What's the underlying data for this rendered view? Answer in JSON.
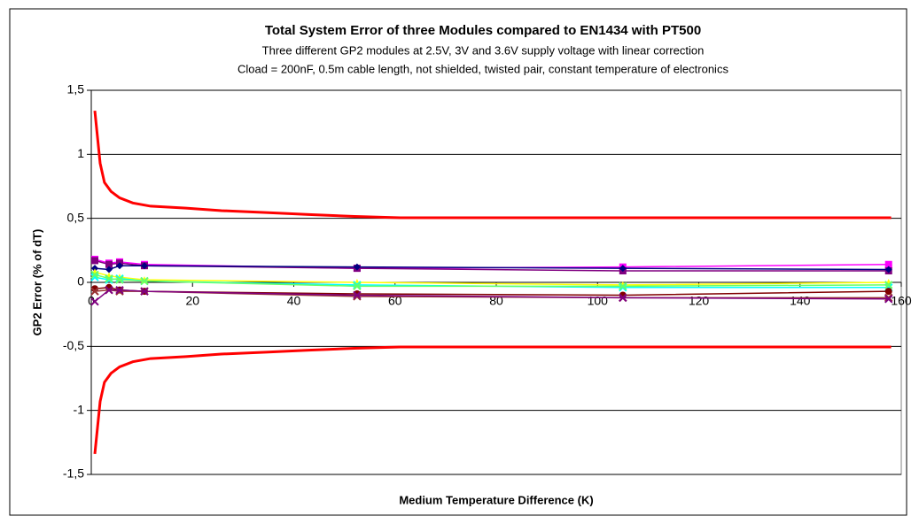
{
  "chart_data": {
    "type": "line",
    "title": "Total System Error of three Modules compared to EN1434 with PT500",
    "subtitle": [
      "Three different GP2 modules at 2.5V, 3V and 3.6V supply voltage with linear correction",
      "Cload = 200nF, 0.5m cable length, not shielded, twisted pair, constant temperature of electronics"
    ],
    "x_label": "Medium Temperature Difference (K)",
    "y_label": "GP2 Error (% of dT)",
    "xlim": [
      0,
      160
    ],
    "xticks": [
      0,
      20,
      40,
      60,
      80,
      100,
      120,
      140,
      160
    ],
    "ylim": [
      -1.5,
      1.5
    ],
    "yticks": [
      {
        "value": -1.5,
        "label": "-1,5"
      },
      -1,
      {
        "value": -0.5,
        "label": "-0,5"
      },
      0,
      {
        "value": 0.5,
        "label": "0,5"
      },
      1,
      {
        "value": 1.5,
        "label": "1,5"
      }
    ],
    "grid": true,
    "series": [
      {
        "color": "#ff0000",
        "x": [
          0.7,
          1.75,
          2.6,
          3.9,
          5.6,
          8.2,
          11.7,
          18.7,
          25.7,
          34.5,
          43,
          52,
          61,
          158
        ],
        "values": [
          1.34,
          0.93,
          0.78,
          0.71,
          0.66,
          0.62,
          0.595,
          0.58,
          0.56,
          0.545,
          0.53,
          0.515,
          0.505,
          0.505
        ]
      },
      {
        "color": "#ff0000",
        "x": [
          0.7,
          1.75,
          2.6,
          3.9,
          5.6,
          8.2,
          11.7,
          18.7,
          25.7,
          34.5,
          43,
          52,
          61,
          158
        ],
        "values": [
          -1.34,
          -0.93,
          -0.78,
          -0.71,
          -0.66,
          -0.62,
          -0.595,
          -0.58,
          -0.56,
          -0.545,
          -0.53,
          -0.515,
          -0.505,
          -0.505
        ]
      },
      {
        "color": "#ff00ff",
        "marker": "square",
        "x": [
          0.7,
          3.5,
          5.6,
          10.5,
          52.5,
          105,
          157.5
        ],
        "values": [
          0.18,
          0.15,
          0.16,
          0.14,
          0.11,
          0.12,
          0.14
        ]
      },
      {
        "color": "#800080",
        "marker": "square",
        "x": [
          0.7,
          3.5,
          5.6,
          10.5,
          52.5,
          105,
          157.5
        ],
        "values": [
          0.17,
          0.14,
          0.15,
          0.13,
          0.11,
          0.09,
          0.09
        ]
      },
      {
        "color": "#000080",
        "marker": "diamond",
        "x": [
          0.7,
          3.5,
          5.6,
          10.5,
          52.5,
          105,
          157.5
        ],
        "values": [
          0.11,
          0.1,
          0.13,
          0.13,
          0.12,
          0.11,
          0.1
        ]
      },
      {
        "color": "#ffff00",
        "marker": "triangle",
        "x": [
          0.7,
          3.5,
          5.6,
          10.5,
          52.5,
          105,
          157.5
        ],
        "values": [
          0.08,
          0.05,
          0.04,
          0.02,
          0.0,
          -0.02,
          0.0
        ]
      },
      {
        "color": "#00ffff",
        "marker": "x",
        "x": [
          0.7,
          3.5,
          5.6,
          10.5,
          52.5,
          105,
          157.5
        ],
        "values": [
          0.04,
          0.02,
          0.03,
          0.01,
          -0.02,
          -0.04,
          -0.04
        ]
      },
      {
        "color": "#66ff66",
        "marker": "x",
        "x": [
          0.7,
          3.5,
          5.6,
          10.5,
          52.5,
          105,
          157.5
        ],
        "values": [
          0.06,
          0.03,
          0.02,
          0.01,
          -0.03,
          -0.03,
          -0.02
        ]
      },
      {
        "color": "#800000",
        "marker": "circle",
        "x": [
          0.7,
          3.5,
          5.6,
          10.5,
          52.5,
          105,
          157.5
        ],
        "values": [
          -0.05,
          -0.04,
          -0.06,
          -0.07,
          -0.09,
          -0.1,
          -0.07
        ]
      },
      {
        "color": "#993333",
        "marker": "x",
        "x": [
          0.7,
          3.5,
          5.6,
          10.5,
          52.5,
          105,
          157.5
        ],
        "values": [
          -0.07,
          -0.06,
          -0.07,
          -0.07,
          -0.11,
          -0.12,
          -0.12
        ]
      },
      {
        "color": "#7f007f",
        "marker": "x",
        "x": [
          0.7,
          3.5,
          5.6,
          10.5,
          52.5,
          105,
          157.5
        ],
        "values": [
          -0.15,
          -0.06,
          -0.06,
          -0.07,
          -0.1,
          -0.12,
          -0.13
        ]
      }
    ]
  }
}
